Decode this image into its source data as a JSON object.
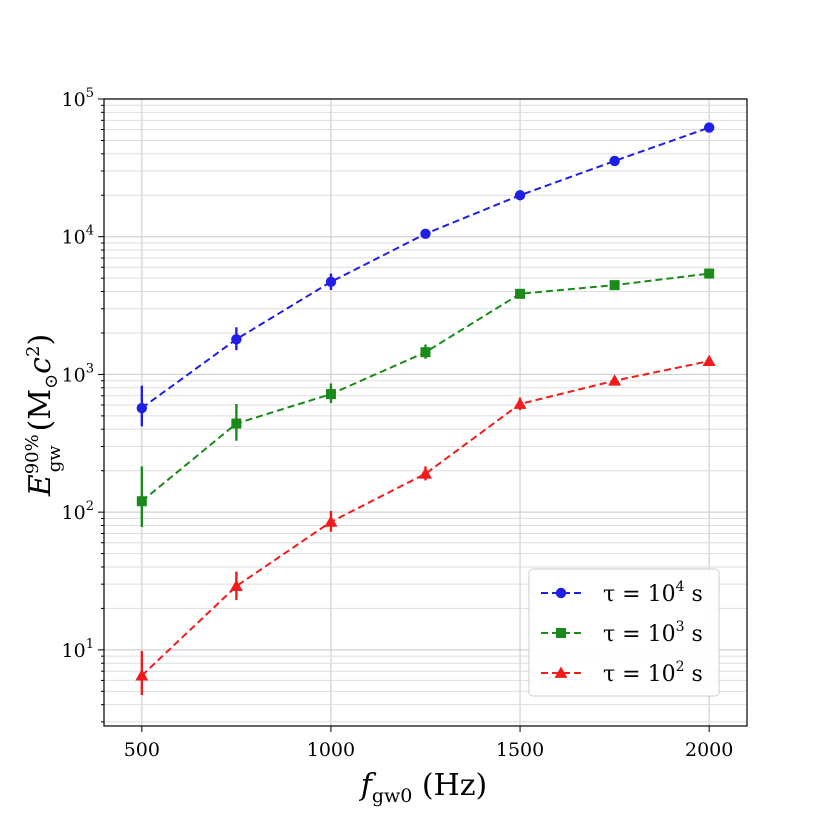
{
  "chart_data": {
    "type": "line",
    "xlabel": "f_gw0 (Hz)",
    "xlabel_main": "f",
    "xlabel_sub": "gw0",
    "xlabel_unit": " (Hz)",
    "ylabel": "E_gw^90% (M_⊙c^2)",
    "ylabel_main": "E",
    "ylabel_sub": "gw",
    "ylabel_sup": "90%",
    "ylabel_unit_open": "(M",
    "ylabel_unit_sub": "⊙",
    "ylabel_unit_c": "c",
    "ylabel_unit_sup": "2",
    "ylabel_unit_close": ")",
    "xlim": [
      400,
      2100
    ],
    "ylim": [
      2.8,
      100000
    ],
    "yscale": "log",
    "grid": true,
    "legend_position": "lower-right",
    "x_ticks": [
      500,
      1000,
      1500,
      2000
    ],
    "x_tick_labels": [
      "500",
      "1000",
      "1500",
      "2000"
    ],
    "y_ticks": [
      10,
      100,
      1000,
      10000,
      100000
    ],
    "y_tick_bases": [
      "10",
      "10",
      "10",
      "10",
      "10"
    ],
    "y_tick_exps": [
      "1",
      "2",
      "3",
      "4",
      "5"
    ],
    "series": [
      {
        "name": "τ = 10^4 s",
        "legend_prefix": "τ = 10",
        "legend_exp": "4",
        "legend_suffix": " s",
        "color": "#1f1fe6",
        "marker": "circle",
        "x": [
          500,
          750,
          1000,
          1250,
          1500,
          1750,
          2000
        ],
        "y": [
          570,
          1800,
          4700,
          10500,
          20000,
          35500,
          62000
        ],
        "err_low": [
          420,
          1500,
          4100,
          9900,
          19200,
          34500,
          60500
        ],
        "err_high": [
          830,
          2200,
          5400,
          11200,
          21000,
          37000,
          64000
        ]
      },
      {
        "name": "τ = 10^3 s",
        "legend_prefix": "τ = 10",
        "legend_exp": "3",
        "legend_suffix": " s",
        "color": "#1a8a1a",
        "marker": "square",
        "x": [
          500,
          750,
          1000,
          1250,
          1500,
          1750,
          2000
        ],
        "y": [
          120,
          440,
          720,
          1450,
          3850,
          4450,
          5400
        ],
        "err_low": [
          78,
          330,
          620,
          1300,
          3600,
          4250,
          5200
        ],
        "err_high": [
          215,
          610,
          860,
          1650,
          4100,
          4650,
          5600
        ]
      },
      {
        "name": "τ = 10^2 s",
        "legend_prefix": "τ = 10",
        "legend_exp": "2",
        "legend_suffix": " s",
        "color": "#f21a1a",
        "marker": "triangle",
        "x": [
          500,
          750,
          1000,
          1250,
          1500,
          1750,
          2000
        ],
        "y": [
          6.5,
          29,
          85,
          190,
          610,
          900,
          1250
        ],
        "err_low": [
          4.7,
          23,
          72,
          170,
          550,
          850,
          1200
        ],
        "err_high": [
          9.8,
          37,
          102,
          215,
          680,
          960,
          1310
        ]
      }
    ]
  }
}
